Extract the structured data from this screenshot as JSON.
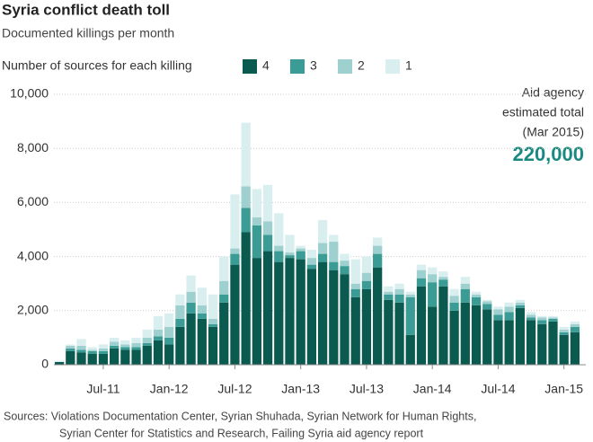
{
  "chart_data": {
    "type": "stacked_bar",
    "title": "Syria conflict death toll",
    "subtitle": "Documented killings per month",
    "legend_title": "Number of sources for each killing",
    "annotations": [
      "Aid agency",
      "estimated total",
      "(Mar 2015)",
      "220,000"
    ],
    "source": [
      "Sources: Violations Documentation Center, Syrian Shuhada, Syrian Network for Human Rights,",
      "Syrian Center for Statistics and Research, Failing Syria aid agency report"
    ],
    "categories": [
      null,
      null,
      null,
      null,
      "Jul-11",
      null,
      null,
      null,
      null,
      null,
      "Jan-12",
      null,
      null,
      null,
      null,
      null,
      "Jul-12",
      null,
      null,
      null,
      null,
      null,
      "Jan-13",
      null,
      null,
      null,
      null,
      null,
      "Jul-13",
      null,
      null,
      null,
      null,
      null,
      "Jan-14",
      null,
      null,
      null,
      null,
      null,
      "Jul-14",
      null,
      null,
      null,
      null,
      null,
      "Jan-15",
      null
    ],
    "series": [
      {
        "name": "4",
        "color": "#0b5a50",
        "values": [
          100,
          500,
          450,
          400,
          400,
          600,
          550,
          550,
          700,
          900,
          750,
          1400,
          1900,
          1700,
          1400,
          2300,
          3700,
          4900,
          3950,
          4200,
          3800,
          3950,
          3900,
          3550,
          3800,
          3500,
          3350,
          2500,
          2800,
          3600,
          2400,
          2300,
          1100,
          2900,
          2150,
          2900,
          2000,
          2300,
          2200,
          2050,
          1650,
          1650,
          2100,
          1650,
          1500,
          1600,
          1100,
          1200
        ]
      },
      {
        "name": "3",
        "color": "#3b9b95",
        "values": [
          0,
          100,
          100,
          100,
          100,
          100,
          100,
          100,
          100,
          150,
          250,
          300,
          400,
          200,
          100,
          300,
          400,
          900,
          1200,
          600,
          400,
          100,
          300,
          150,
          300,
          300,
          300,
          300,
          300,
          500,
          200,
          300,
          1400,
          300,
          900,
          250,
          300,
          500,
          300,
          200,
          200,
          300,
          100,
          100,
          150,
          100,
          100,
          200
        ]
      },
      {
        "name": "2",
        "color": "#9dd0cf",
        "values": [
          0,
          100,
          150,
          50,
          100,
          150,
          100,
          150,
          200,
          250,
          400,
          500,
          400,
          300,
          200,
          500,
          200,
          800,
          300,
          500,
          200,
          100,
          100,
          250,
          400,
          750,
          200,
          200,
          300,
          300,
          100,
          200,
          100,
          300,
          300,
          100,
          250,
          200,
          100,
          100,
          200,
          200,
          100,
          100,
          100,
          50,
          100,
          100
        ]
      },
      {
        "name": "1",
        "color": "#d9eeee",
        "values": [
          50,
          50,
          250,
          100,
          150,
          150,
          150,
          200,
          300,
          500,
          500,
          400,
          600,
          650,
          900,
          900,
          2000,
          2350,
          1050,
          1350,
          1200,
          650,
          100,
          300,
          850,
          250,
          250,
          900,
          600,
          300,
          200,
          200,
          100,
          200,
          250,
          200,
          250,
          250,
          100,
          50,
          100,
          150,
          100,
          100,
          50,
          50,
          100,
          100
        ]
      }
    ],
    "ylim": [
      0,
      10000
    ],
    "yticks": [
      0,
      {
        "value": 2000,
        "label": "2,000"
      },
      {
        "value": 4000,
        "label": "4,000"
      },
      {
        "value": 6000,
        "label": "6,000"
      },
      {
        "value": 8000,
        "label": "8,000"
      },
      {
        "value": 10000,
        "label": "10,000"
      }
    ],
    "grid": true
  }
}
